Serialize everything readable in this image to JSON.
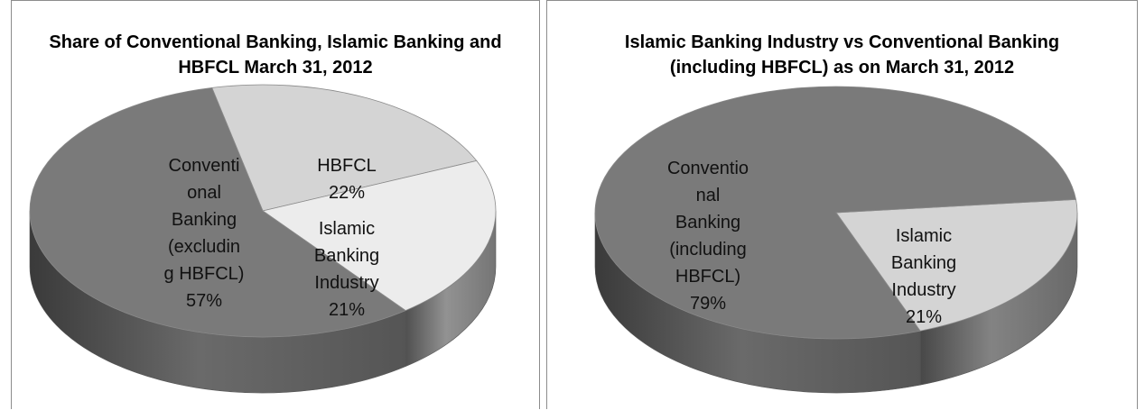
{
  "chart_data": [
    {
      "type": "pie",
      "title": "Share of Conventional Banking, Islamic Banking and HBFCL  March 31, 2012",
      "slices": [
        {
          "label": "HBFCL",
          "value": 22,
          "display": "22%",
          "color": "#d4d4d4"
        },
        {
          "label": "Islamic Banking Industry",
          "value": 21,
          "display": "21%",
          "color": "#ececec"
        },
        {
          "label": "Conventional Banking (excluding HBFCL)",
          "value": 57,
          "display": "57%",
          "color": "#7a7a7a"
        }
      ],
      "label_lines": [
        [
          "Conventi",
          "onal",
          "Banking",
          "(excludin",
          "g HBFCL)"
        ],
        [
          "HBFCL"
        ],
        [
          "Islamic",
          "Banking",
          "Industry"
        ]
      ]
    },
    {
      "type": "pie",
      "title": "Islamic Banking Industry vs Conventional Banking (including HBFCL) as on March 31, 2012",
      "slices": [
        {
          "label": "Islamic Banking Industry",
          "value": 21,
          "display": "21%",
          "color": "#d4d4d4"
        },
        {
          "label": "Conventional Banking (including HBFCL)",
          "value": 79,
          "display": "79%",
          "color": "#7a7a7a"
        }
      ],
      "label_lines": [
        [
          "Conventio",
          "nal",
          "Banking",
          "(including",
          "HBFCL)"
        ],
        [
          "Islamic",
          "Banking",
          "Industry"
        ]
      ]
    }
  ]
}
